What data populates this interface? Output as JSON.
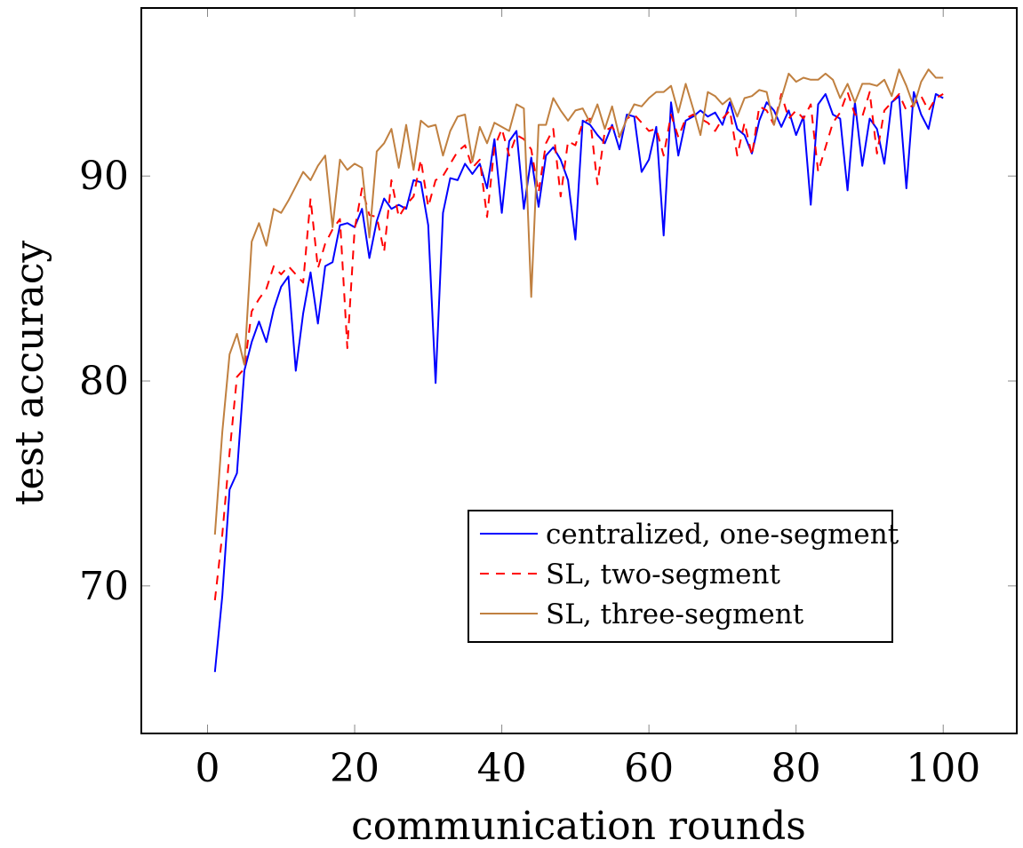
{
  "chart_data": {
    "type": "line",
    "xlabel": "communication rounds",
    "ylabel": "test accuracy",
    "xlim": [
      -9,
      110
    ],
    "ylim": [
      62.8,
      98.2
    ],
    "xticks": [
      0,
      20,
      40,
      60,
      80,
      100
    ],
    "yticks": [
      70,
      80,
      90
    ],
    "xtick_labels": [
      "0",
      "20",
      "40",
      "60",
      "80",
      "100"
    ],
    "ytick_labels": [
      "70",
      "80",
      "90"
    ],
    "legend_position": "bottom-right",
    "series": [
      {
        "name": "centralized, one-segment",
        "color": "#0000ff",
        "dash": "solid",
        "x": [
          1,
          2,
          3,
          4,
          5,
          6,
          7,
          8,
          9,
          10,
          11,
          12,
          13,
          14,
          15,
          16,
          17,
          18,
          19,
          20,
          21,
          22,
          23,
          24,
          25,
          26,
          27,
          28,
          29,
          30,
          31,
          32,
          33,
          34,
          35,
          36,
          37,
          38,
          39,
          40,
          41,
          42,
          43,
          44,
          45,
          46,
          47,
          48,
          49,
          50,
          51,
          52,
          53,
          54,
          55,
          56,
          57,
          58,
          59,
          60,
          61,
          62,
          63,
          64,
          65,
          66,
          67,
          68,
          69,
          70,
          71,
          72,
          73,
          74,
          75,
          76,
          77,
          78,
          79,
          80,
          81,
          82,
          83,
          84,
          85,
          86,
          87,
          88,
          89,
          90,
          91,
          92,
          93,
          94,
          95,
          96,
          97,
          98,
          99,
          100
        ],
        "values": [
          65.8,
          69.5,
          74.7,
          75.5,
          80.5,
          81.9,
          82.9,
          81.9,
          83.5,
          84.6,
          85.1,
          80.5,
          83.3,
          85.3,
          82.8,
          85.6,
          85.8,
          87.6,
          87.7,
          87.5,
          88.4,
          86.0,
          87.8,
          88.9,
          88.4,
          88.6,
          88.4,
          89.8,
          89.7,
          87.6,
          79.9,
          88.2,
          89.9,
          89.8,
          90.6,
          90.1,
          90.6,
          89.4,
          91.8,
          88.2,
          91.7,
          92.2,
          88.4,
          90.9,
          88.5,
          91.0,
          91.4,
          90.8,
          89.8,
          86.9,
          92.7,
          92.5,
          92.0,
          91.6,
          92.5,
          91.3,
          93.0,
          92.9,
          90.2,
          90.8,
          92.4,
          87.1,
          93.6,
          91.0,
          92.7,
          92.9,
          93.2,
          92.9,
          93.1,
          92.5,
          93.6,
          92.3,
          92.0,
          91.1,
          92.7,
          93.6,
          93.2,
          92.4,
          93.2,
          92.0,
          92.9,
          88.6,
          93.5,
          94.0,
          93.0,
          92.8,
          89.3,
          93.6,
          90.5,
          92.8,
          92.3,
          90.6,
          93.6,
          93.9,
          89.4,
          94.1,
          93.0,
          92.3,
          94.0,
          93.8
        ]
      },
      {
        "name": "SL, two-segment",
        "color": "#ff0000",
        "dash": "dashed",
        "x": [
          1,
          2,
          3,
          4,
          5,
          6,
          7,
          8,
          9,
          10,
          11,
          12,
          13,
          14,
          15,
          16,
          17,
          18,
          19,
          20,
          21,
          22,
          23,
          24,
          25,
          26,
          27,
          28,
          29,
          30,
          31,
          32,
          33,
          34,
          35,
          36,
          37,
          38,
          39,
          40,
          41,
          42,
          43,
          44,
          45,
          46,
          47,
          48,
          49,
          50,
          51,
          52,
          53,
          54,
          55,
          56,
          57,
          58,
          59,
          60,
          61,
          62,
          63,
          64,
          65,
          66,
          67,
          68,
          69,
          70,
          71,
          72,
          73,
          74,
          75,
          76,
          77,
          78,
          79,
          80,
          81,
          82,
          83,
          84,
          85,
          86,
          87,
          88,
          89,
          90,
          91,
          92,
          93,
          94,
          95,
          96,
          97,
          98,
          99,
          100
        ],
        "values": [
          69.3,
          72.5,
          76.5,
          80.2,
          80.6,
          83.4,
          84.0,
          84.5,
          85.6,
          85.2,
          85.6,
          85.2,
          84.8,
          88.9,
          85.5,
          86.7,
          87.4,
          87.9,
          81.6,
          87.4,
          89.4,
          88.1,
          88.0,
          86.3,
          89.8,
          88.0,
          88.6,
          89.0,
          90.8,
          88.5,
          89.8,
          90.0,
          90.6,
          91.2,
          91.5,
          90.4,
          90.8,
          88.0,
          91.4,
          92.3,
          91.0,
          92.0,
          91.8,
          91.3,
          89.2,
          91.6,
          92.3,
          89.0,
          91.7,
          91.5,
          92.6,
          92.8,
          89.6,
          92.2,
          92.4,
          91.9,
          92.8,
          93.0,
          92.6,
          92.2,
          92.3,
          91.0,
          93.0,
          91.9,
          92.8,
          93.0,
          92.8,
          92.6,
          92.2,
          92.8,
          93.2,
          91.0,
          92.6,
          91.0,
          93.4,
          93.2,
          92.5,
          94.0,
          92.8,
          93.2,
          92.8,
          93.5,
          90.2,
          91.4,
          92.6,
          93.1,
          94.1,
          93.0,
          92.9,
          94.1,
          91.1,
          93.2,
          93.6,
          94.0,
          93.2,
          93.5,
          93.9,
          93.2,
          93.8,
          94.0
        ]
      },
      {
        "name": "SL, three-segment",
        "color": "#c08040",
        "dash": "solid",
        "x": [
          1,
          2,
          3,
          4,
          5,
          6,
          7,
          8,
          9,
          10,
          11,
          12,
          13,
          14,
          15,
          16,
          17,
          18,
          19,
          20,
          21,
          22,
          23,
          24,
          25,
          26,
          27,
          28,
          29,
          30,
          31,
          32,
          33,
          34,
          35,
          36,
          37,
          38,
          39,
          40,
          41,
          42,
          43,
          44,
          45,
          46,
          47,
          48,
          49,
          50,
          51,
          52,
          53,
          54,
          55,
          56,
          57,
          58,
          59,
          60,
          61,
          62,
          63,
          64,
          65,
          66,
          67,
          68,
          69,
          70,
          71,
          72,
          73,
          74,
          75,
          76,
          77,
          78,
          79,
          80,
          81,
          82,
          83,
          84,
          85,
          86,
          87,
          88,
          89,
          90,
          91,
          92,
          93,
          94,
          95,
          96,
          97,
          98,
          99,
          100
        ],
        "values": [
          72.5,
          77.5,
          81.3,
          82.3,
          80.8,
          86.8,
          87.7,
          86.6,
          88.4,
          88.2,
          88.8,
          89.5,
          90.2,
          89.8,
          90.5,
          91.0,
          87.5,
          90.8,
          90.3,
          90.6,
          90.4,
          87.0,
          91.2,
          91.6,
          92.3,
          90.4,
          92.5,
          90.3,
          92.7,
          92.4,
          92.5,
          91.0,
          92.2,
          92.9,
          93.0,
          90.7,
          92.4,
          91.6,
          92.6,
          92.4,
          92.2,
          93.5,
          93.3,
          84.1,
          92.5,
          92.5,
          93.8,
          93.2,
          92.7,
          93.2,
          93.3,
          92.6,
          93.5,
          92.3,
          93.4,
          91.9,
          92.8,
          93.5,
          93.4,
          93.8,
          94.1,
          94.1,
          94.4,
          93.1,
          94.5,
          93.3,
          92.0,
          94.1,
          93.9,
          93.5,
          93.8,
          92.9,
          93.8,
          93.9,
          94.2,
          94.1,
          92.5,
          93.8,
          95.0,
          94.6,
          94.8,
          94.7,
          94.7,
          95.0,
          94.7,
          93.8,
          94.5,
          93.6,
          94.5,
          94.5,
          94.4,
          94.7,
          93.9,
          95.2,
          94.4,
          93.4,
          94.6,
          95.2,
          94.8,
          94.8
        ]
      }
    ]
  }
}
